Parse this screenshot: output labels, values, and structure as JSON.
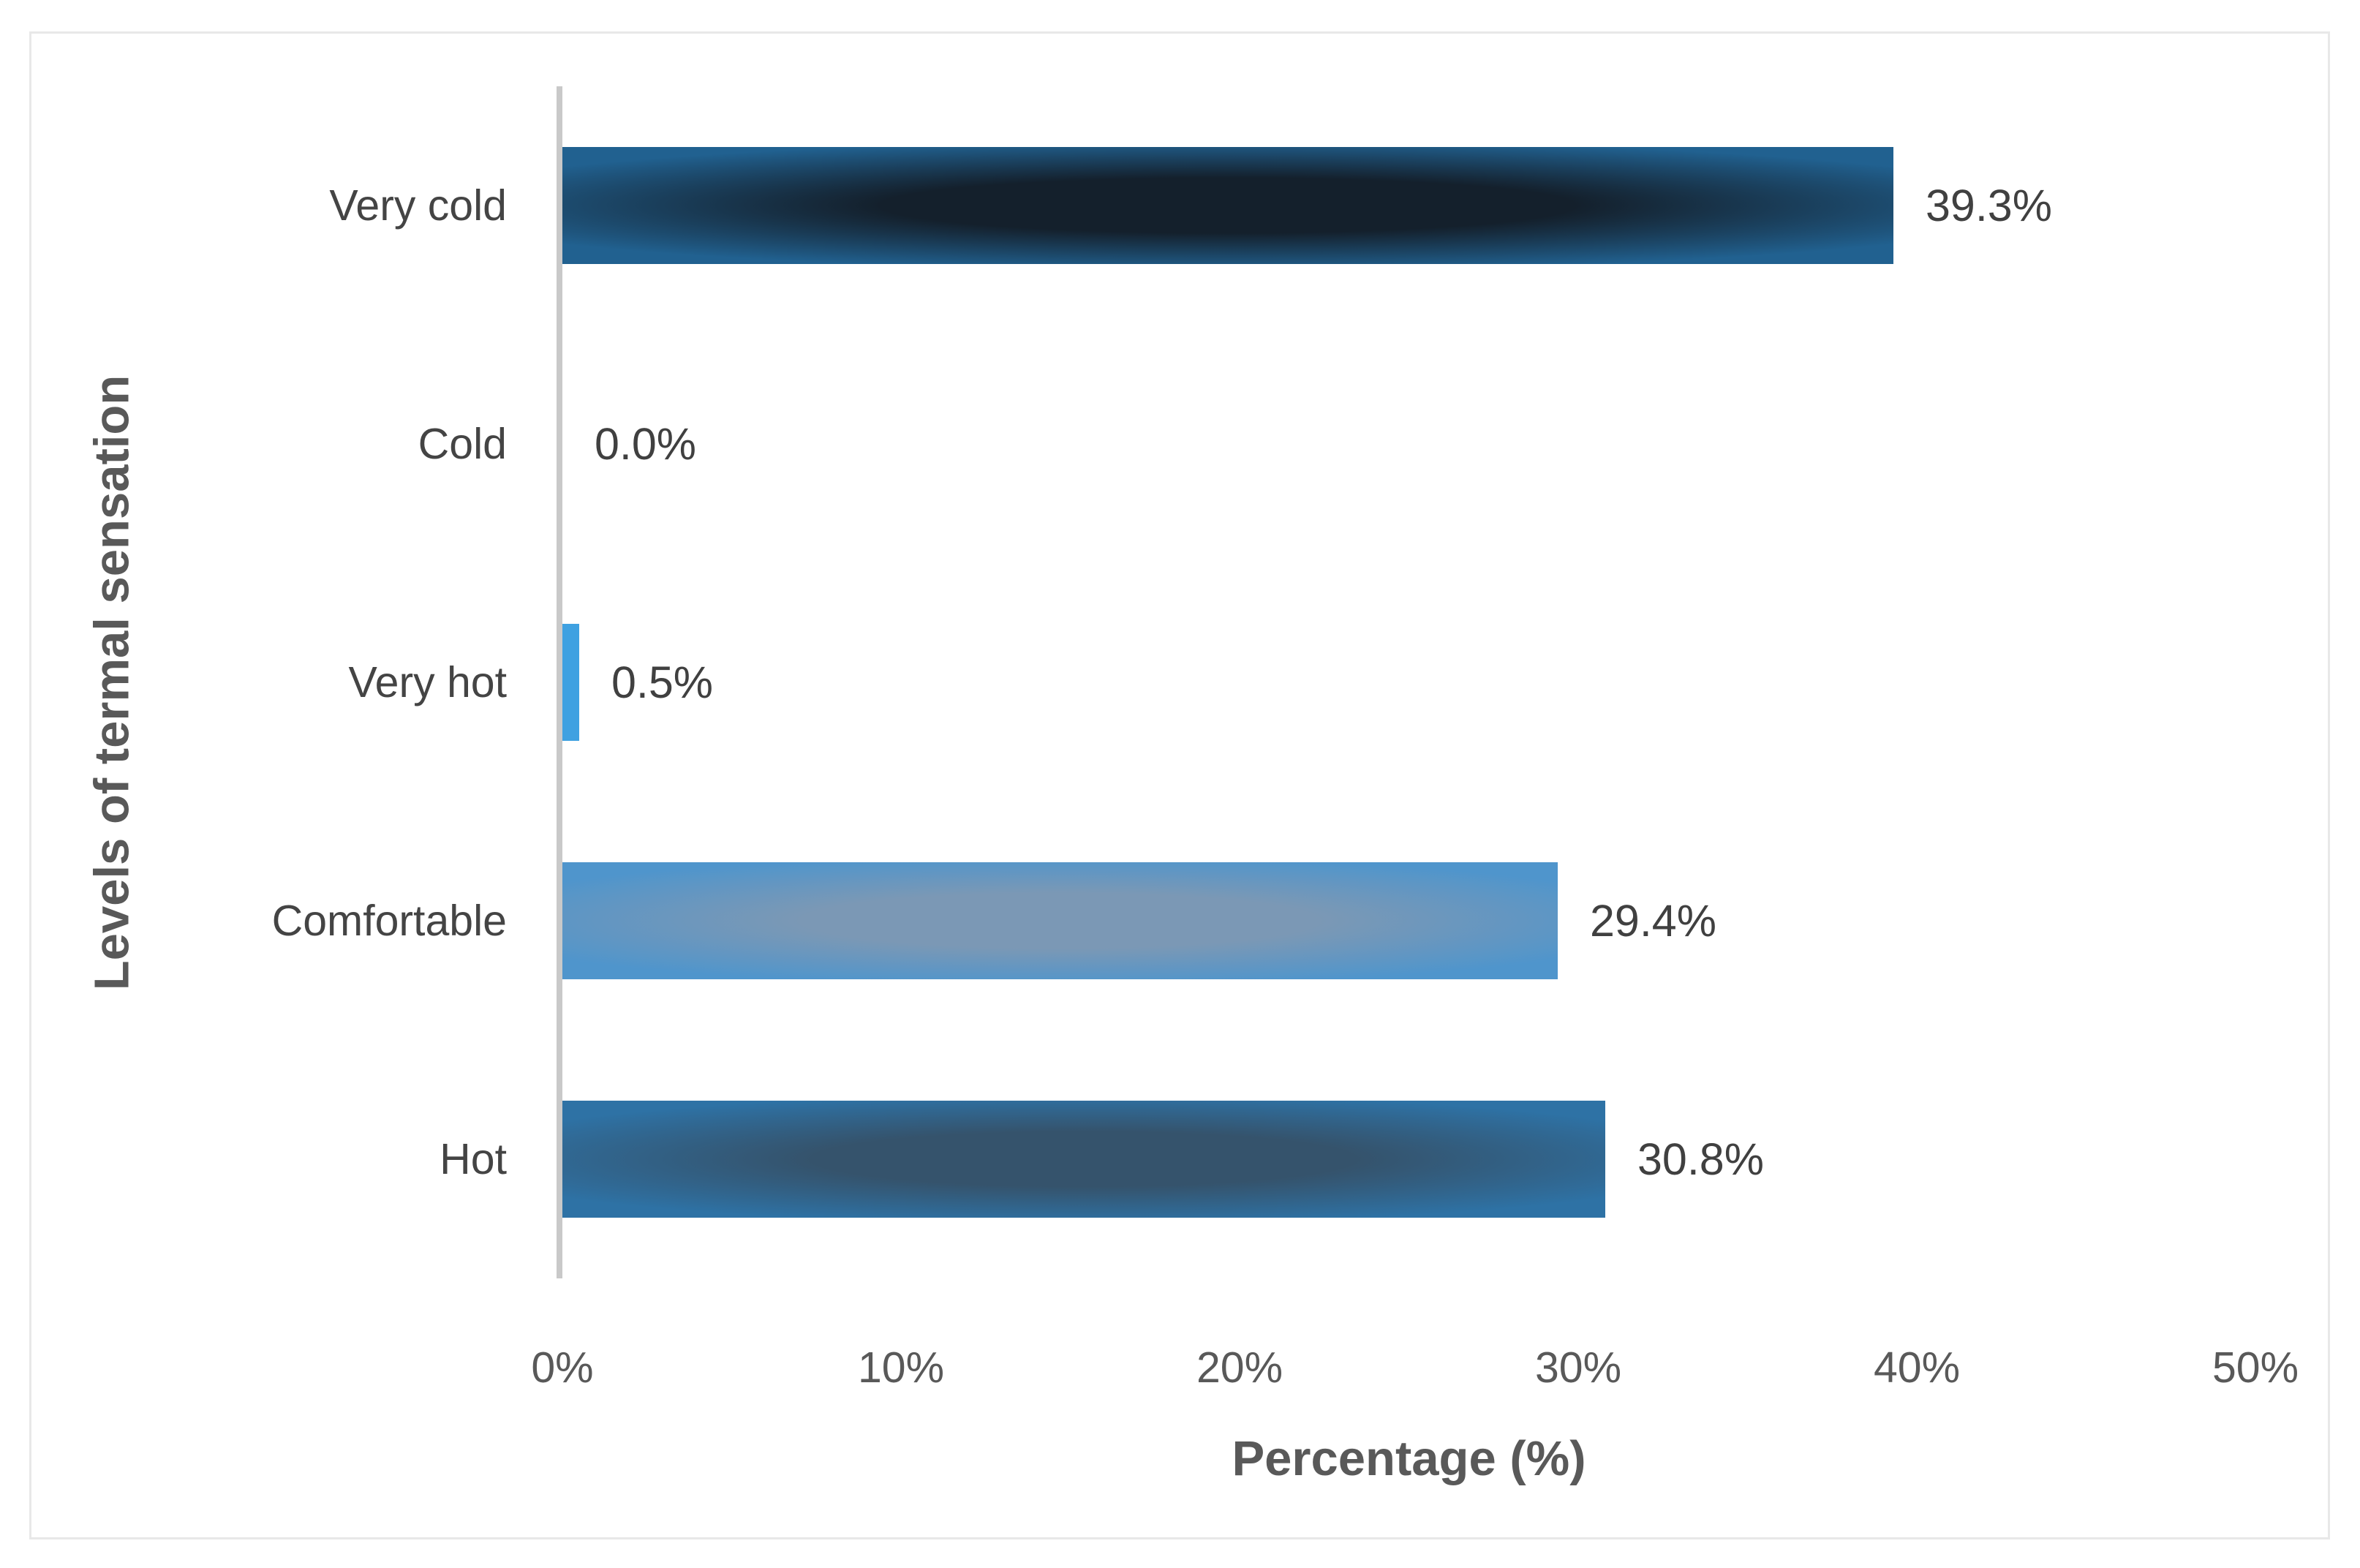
{
  "chart_data": {
    "type": "bar",
    "orientation": "horizontal",
    "title": "",
    "xlabel": "Percentage (%)",
    "ylabel": "Levels of termal sensation",
    "xlim": [
      0,
      50
    ],
    "grid": false,
    "legend": false,
    "x_tick_labels": [
      "0%",
      "10%",
      "20%",
      "30%",
      "40%",
      "50%"
    ],
    "categories": [
      "Very cold",
      "Cold",
      "Very hot",
      "Comfortable",
      "Hot"
    ],
    "values": [
      0.0,
      0.5,
      29.4,
      30.8,
      39.3
    ],
    "data_labels": [
      "0.0%",
      "0.5%",
      "29.4%",
      "30.8%",
      "39.3%"
    ],
    "bar_styles": [
      {
        "center": "#3fa1e1",
        "edge": "#3fa1e1"
      },
      {
        "center": "#3fa1e1",
        "edge": "#3fa1e1"
      },
      {
        "center": "#7b98b5",
        "edge": "#4f95cc"
      },
      {
        "center": "#35536c",
        "edge": "#2e72a5"
      },
      {
        "center": "#14202c",
        "edge": "#216190"
      }
    ],
    "colors": {
      "axis_line": "#c9c9c9",
      "category_label": "#444444",
      "value_label": "#404040",
      "tick_label": "#595959",
      "axis_title": "#595959",
      "frame_border": "#e8e8e8",
      "background": "#ffffff"
    }
  }
}
